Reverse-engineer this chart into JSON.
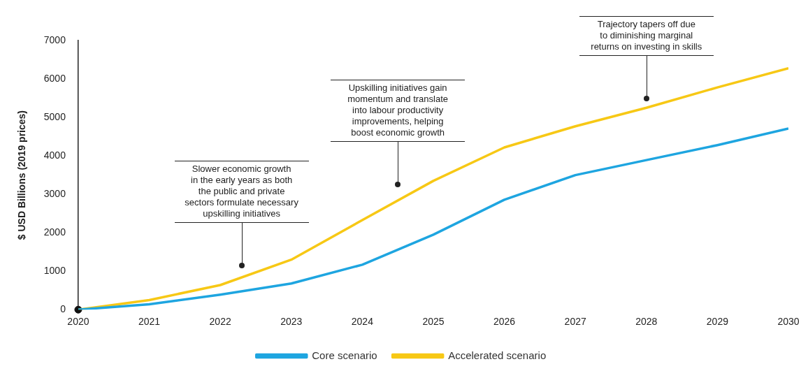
{
  "chart_data": {
    "type": "line",
    "ylabel": "$ USD Billions (2019 prices)",
    "x": [
      2020,
      2021,
      2022,
      2023,
      2024,
      2025,
      2026,
      2027,
      2028,
      2029,
      2030
    ],
    "xlim": [
      2020,
      2030
    ],
    "xticks": [
      2020,
      2021,
      2022,
      2023,
      2024,
      2025,
      2026,
      2027,
      2028,
      2029,
      2030
    ],
    "ylim": [
      0,
      7000
    ],
    "yticks": [
      0,
      1000,
      2000,
      3000,
      4000,
      5000,
      6000,
      7000
    ],
    "series": [
      {
        "name": "Core scenario",
        "color": "#1ea5e0",
        "values": [
          0,
          140,
          390,
          680,
          1170,
          1950,
          2860,
          3500,
          3890,
          4280,
          4710
        ]
      },
      {
        "name": "Accelerated scenario",
        "color": "#f7c815",
        "values": [
          0,
          250,
          640,
          1300,
          2330,
          3350,
          4220,
          4770,
          5250,
          5780,
          6280
        ]
      },
      {
        "type": "scatter",
        "color": "#111111",
        "x": [
          2020
        ],
        "values": [
          0
        ]
      }
    ],
    "grid": false,
    "legend": "bottom",
    "line_style": "solid",
    "annotations": [
      {
        "text": "Slower economic growth\nin the early years as both\nthe public and private\nsectors formulate necessary\nupskilling initiatives",
        "x": 2022.3,
        "y": 1150
      },
      {
        "text": "Upskilling initiatives gain\nmomentum and translate\ninto labour productivity\nimprovements, helping\nboost economic growth",
        "x": 2024.5,
        "y": 3250
      },
      {
        "text": "Trajectory tapers off due\nto diminishing marginal\nreturns on investing in skills",
        "x": 2028,
        "y": 5500
      }
    ]
  }
}
